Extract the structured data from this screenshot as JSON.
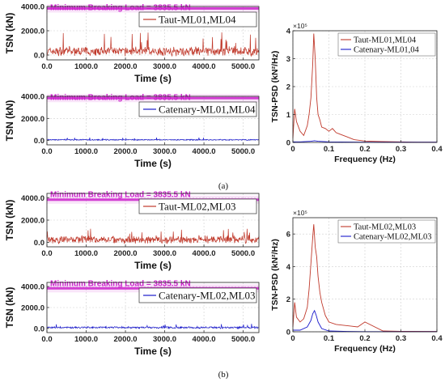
{
  "captions": {
    "a": "(a)",
    "b": "(b)"
  },
  "colors": {
    "taut": "#c0392b",
    "catenary": "#1a1acc",
    "mbl": "#cc22cc",
    "grid": "#cfcfcf"
  },
  "chart_data": [
    {
      "id": "a_ts_taut",
      "type": "line",
      "ylabel": "TSN (kN)",
      "xlabel": "Time (s)",
      "xlim": [
        0,
        5400
      ],
      "ylim": [
        -400,
        4000
      ],
      "yticks": [
        "0.0",
        "2000.0",
        "4000.0"
      ],
      "ytick_values": [
        0,
        2000,
        4000
      ],
      "xticks": [
        "0.0",
        "1000.0",
        "2000.0",
        "3000.0",
        "4000.0",
        "5000.0"
      ],
      "xtick_values": [
        0,
        1000,
        2000,
        3000,
        4000,
        5000
      ],
      "annotation": "Minimum Breaking Load = 3835.5 kN",
      "mbl_value": 3835.5,
      "series": [
        {
          "name": "Taut-ML01,ML04",
          "color": "taut",
          "mean": 300,
          "amp": 450,
          "peak": 1600
        }
      ],
      "grid": true,
      "legend": "top-right"
    },
    {
      "id": "a_ts_cat",
      "type": "line",
      "ylabel": "TSN (kN)",
      "xlabel": "Time (s)",
      "xlim": [
        0,
        5400
      ],
      "ylim": [
        -400,
        4000
      ],
      "yticks": [
        "0.0",
        "2000.0",
        "4000.0"
      ],
      "ytick_values": [
        0,
        2000,
        4000
      ],
      "xticks": [
        "0.0",
        "1000.0",
        "2000.0",
        "3000.0",
        "4000.0",
        "5000.0"
      ],
      "xtick_values": [
        0,
        1000,
        2000,
        3000,
        4000,
        5000
      ],
      "annotation": "Minimum Breaking Load = 3835.5 kN",
      "mbl_value": 3835.5,
      "series": [
        {
          "name": "Catenary-ML01,ML04",
          "color": "catenary",
          "mean": 60,
          "amp": 60,
          "peak": 200
        }
      ],
      "grid": true,
      "legend": "top-right"
    },
    {
      "id": "a_psd",
      "type": "line",
      "ylabel": "TSN-PSD (kN²/Hz)",
      "xlabel": "Frequency (Hz)",
      "y_multiplier": "×10⁵",
      "xlim": [
        0,
        0.4
      ],
      "ylim": [
        0,
        4
      ],
      "xticks": [
        "0",
        "0.1",
        "0.2",
        "0.3",
        "0.4"
      ],
      "xtick_values": [
        0,
        0.1,
        0.2,
        0.3,
        0.4
      ],
      "yticks": [
        "0",
        "1",
        "2",
        "3",
        "4"
      ],
      "ytick_values": [
        0,
        1,
        2,
        3,
        4
      ],
      "series": [
        {
          "name": "Taut-ML01,ML04",
          "color": "taut",
          "x": [
            0,
            0.005,
            0.01,
            0.02,
            0.03,
            0.04,
            0.045,
            0.05,
            0.055,
            0.058,
            0.062,
            0.066,
            0.07,
            0.075,
            0.08,
            0.09,
            0.1,
            0.11,
            0.12,
            0.13,
            0.15,
            0.17,
            0.2,
            0.25,
            0.3,
            0.35,
            0.4
          ],
          "y": [
            0.15,
            1.2,
            0.75,
            0.4,
            0.25,
            0.6,
            1.0,
            1.6,
            2.8,
            3.9,
            3.0,
            1.6,
            1.0,
            0.8,
            0.55,
            0.5,
            0.4,
            0.5,
            0.35,
            0.3,
            0.2,
            0.1,
            0.05,
            0.03,
            0.02,
            0.01,
            0.01
          ]
        },
        {
          "name": "Catenary-ML01,04",
          "color": "catenary",
          "x": [
            0,
            0.02,
            0.05,
            0.06,
            0.07,
            0.1,
            0.2,
            0.3,
            0.4
          ],
          "y": [
            0.02,
            0.02,
            0.04,
            0.06,
            0.04,
            0.02,
            0.01,
            0.01,
            0.01
          ]
        }
      ],
      "grid": true,
      "legend": "top-right"
    },
    {
      "id": "b_ts_taut",
      "type": "line",
      "ylabel": "TSN (kN)",
      "xlabel": "Time (s)",
      "xlim": [
        0,
        5400
      ],
      "ylim": [
        -400,
        4400
      ],
      "yticks": [
        "0.0",
        "2000.0",
        "4000.0"
      ],
      "ytick_values": [
        0,
        2000,
        4000
      ],
      "xticks": [
        "0.0",
        "1000.0",
        "2000.0",
        "3000.0",
        "4000.0",
        "5000.0"
      ],
      "xtick_values": [
        0,
        1000,
        2000,
        3000,
        4000,
        5000
      ],
      "annotation": "Minimum Breaking Load = 3835.5 kN",
      "mbl_value": 3835.5,
      "series": [
        {
          "name": "Taut-ML02,ML03",
          "color": "taut",
          "mean": 250,
          "amp": 400,
          "peak": 1000
        }
      ],
      "grid": true,
      "legend": "top-right"
    },
    {
      "id": "b_ts_cat",
      "type": "line",
      "ylabel": "TSN (kN)",
      "xlabel": "Time (s)",
      "xlim": [
        0,
        5400
      ],
      "ylim": [
        -400,
        4400
      ],
      "yticks": [
        "0.0",
        "2000.0",
        "4000.0"
      ],
      "ytick_values": [
        0,
        2000,
        4000
      ],
      "xticks": [
        "0.0",
        "1000.0",
        "2000.0",
        "3000.0",
        "4000.0",
        "5000.0"
      ],
      "xtick_values": [
        0,
        1000,
        2000,
        3000,
        4000,
        5000
      ],
      "annotation": "Minimum Breaking Load = 3835.5 kN",
      "mbl_value": 3835.5,
      "series": [
        {
          "name": "Catenary-ML02,ML03",
          "color": "catenary",
          "mean": 90,
          "amp": 110,
          "peak": 350
        }
      ],
      "grid": true,
      "legend": "top-right"
    },
    {
      "id": "b_psd",
      "type": "line",
      "ylabel": "TSN-PSD (kN²/Hz)",
      "xlabel": "Frequency (Hz)",
      "y_multiplier": "×10⁵",
      "xlim": [
        0,
        0.4
      ],
      "ylim": [
        0,
        7
      ],
      "xticks": [
        "0",
        "0.1",
        "0.2",
        "0.3",
        "0.4"
      ],
      "xtick_values": [
        0,
        0.1,
        0.2,
        0.3,
        0.4
      ],
      "yticks": [
        "0",
        "2",
        "4",
        "6"
      ],
      "ytick_values": [
        0,
        2,
        4,
        6
      ],
      "series": [
        {
          "name": "Taut-ML02,ML03",
          "color": "taut",
          "x": [
            0,
            0.005,
            0.01,
            0.02,
            0.03,
            0.04,
            0.045,
            0.05,
            0.055,
            0.058,
            0.062,
            0.066,
            0.07,
            0.075,
            0.08,
            0.09,
            0.1,
            0.12,
            0.14,
            0.16,
            0.18,
            0.2,
            0.25,
            0.3,
            0.4
          ],
          "y": [
            0.3,
            1.8,
            0.9,
            0.6,
            0.8,
            1.5,
            2.6,
            4.2,
            5.8,
            6.6,
            5.2,
            4.6,
            3.4,
            2.4,
            1.8,
            1.0,
            0.6,
            0.45,
            0.4,
            0.35,
            0.3,
            0.6,
            0.05,
            0.03,
            0.02
          ]
        },
        {
          "name": "Catenary-ML02,ML03",
          "color": "catenary",
          "x": [
            0,
            0.02,
            0.04,
            0.05,
            0.055,
            0.06,
            0.065,
            0.07,
            0.08,
            0.1,
            0.15,
            0.2,
            0.3,
            0.4
          ],
          "y": [
            0.1,
            0.1,
            0.3,
            0.7,
            1.1,
            1.3,
            1.0,
            0.6,
            0.2,
            0.05,
            0.02,
            0.01,
            0.01,
            0.01
          ]
        }
      ],
      "grid": true,
      "legend": "top-right"
    }
  ]
}
